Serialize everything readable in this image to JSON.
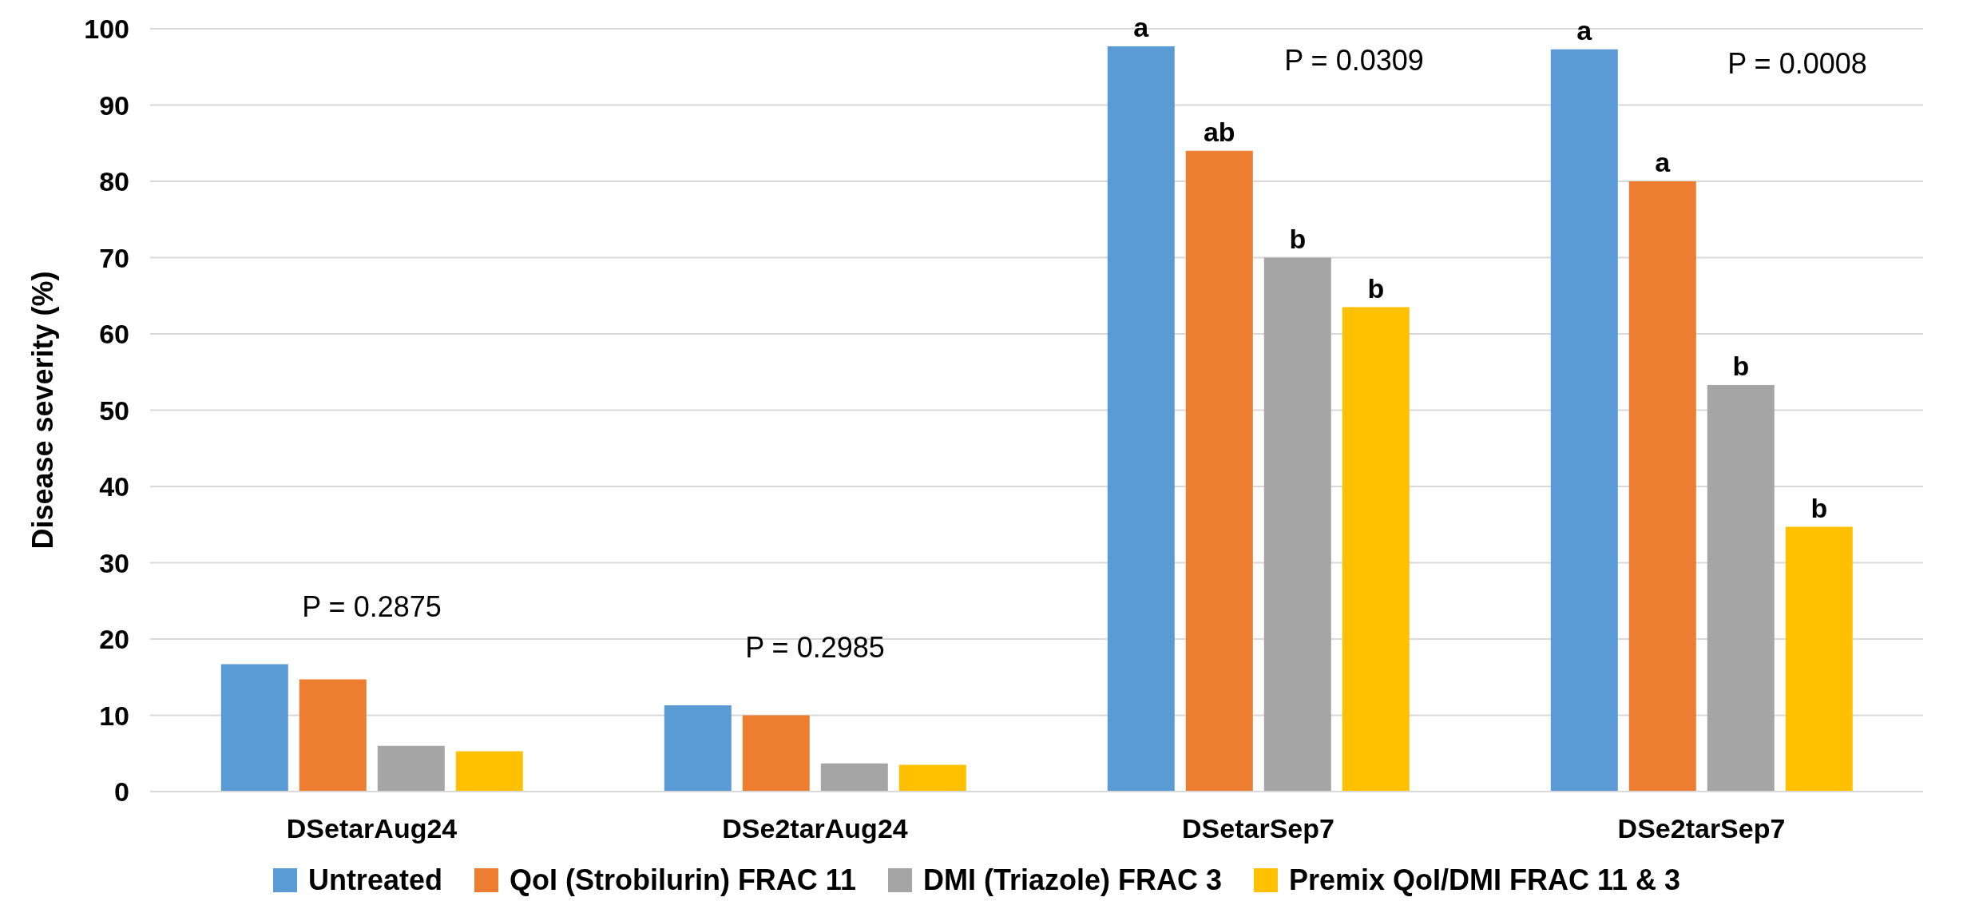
{
  "chart_data": {
    "type": "bar",
    "ylabel": "Disease severity (%)",
    "categories": [
      "DSetarAug24",
      "DSe2tarAug24",
      "DSetarSep7",
      "DSe2tarSep7"
    ],
    "series": [
      {
        "name": "Untreated",
        "color": "#5b9bd5",
        "values": [
          16.7,
          11.3,
          97.7,
          97.3
        ],
        "value_labels": [
          null,
          null,
          "a",
          "a"
        ]
      },
      {
        "name": "QoI (Strobilurin) FRAC 11",
        "color": "#ed7d31",
        "values": [
          14.7,
          10.0,
          84.0,
          80.0
        ],
        "value_labels": [
          null,
          null,
          "ab",
          "a"
        ]
      },
      {
        "name": "DMI (Triazole) FRAC 3",
        "color": "#a5a5a5",
        "values": [
          6.0,
          3.7,
          70.0,
          53.3
        ],
        "value_labels": [
          null,
          null,
          "b",
          "b"
        ]
      },
      {
        "name": "Premix QoI/DMI FRAC  11 & 3",
        "color": "#ffc000",
        "values": [
          5.3,
          3.5,
          63.5,
          34.7
        ],
        "value_labels": [
          null,
          null,
          "b",
          "b"
        ]
      }
    ],
    "ylim": [
      0,
      100
    ],
    "yticks": [
      0,
      10,
      20,
      30,
      40,
      50,
      60,
      70,
      80,
      90,
      100
    ],
    "grid": "y",
    "legend": "bottom",
    "annotations": [
      "P = 0.2875",
      "P = 0.2985",
      "P = 0.0309",
      "P = 0.0008"
    ]
  }
}
